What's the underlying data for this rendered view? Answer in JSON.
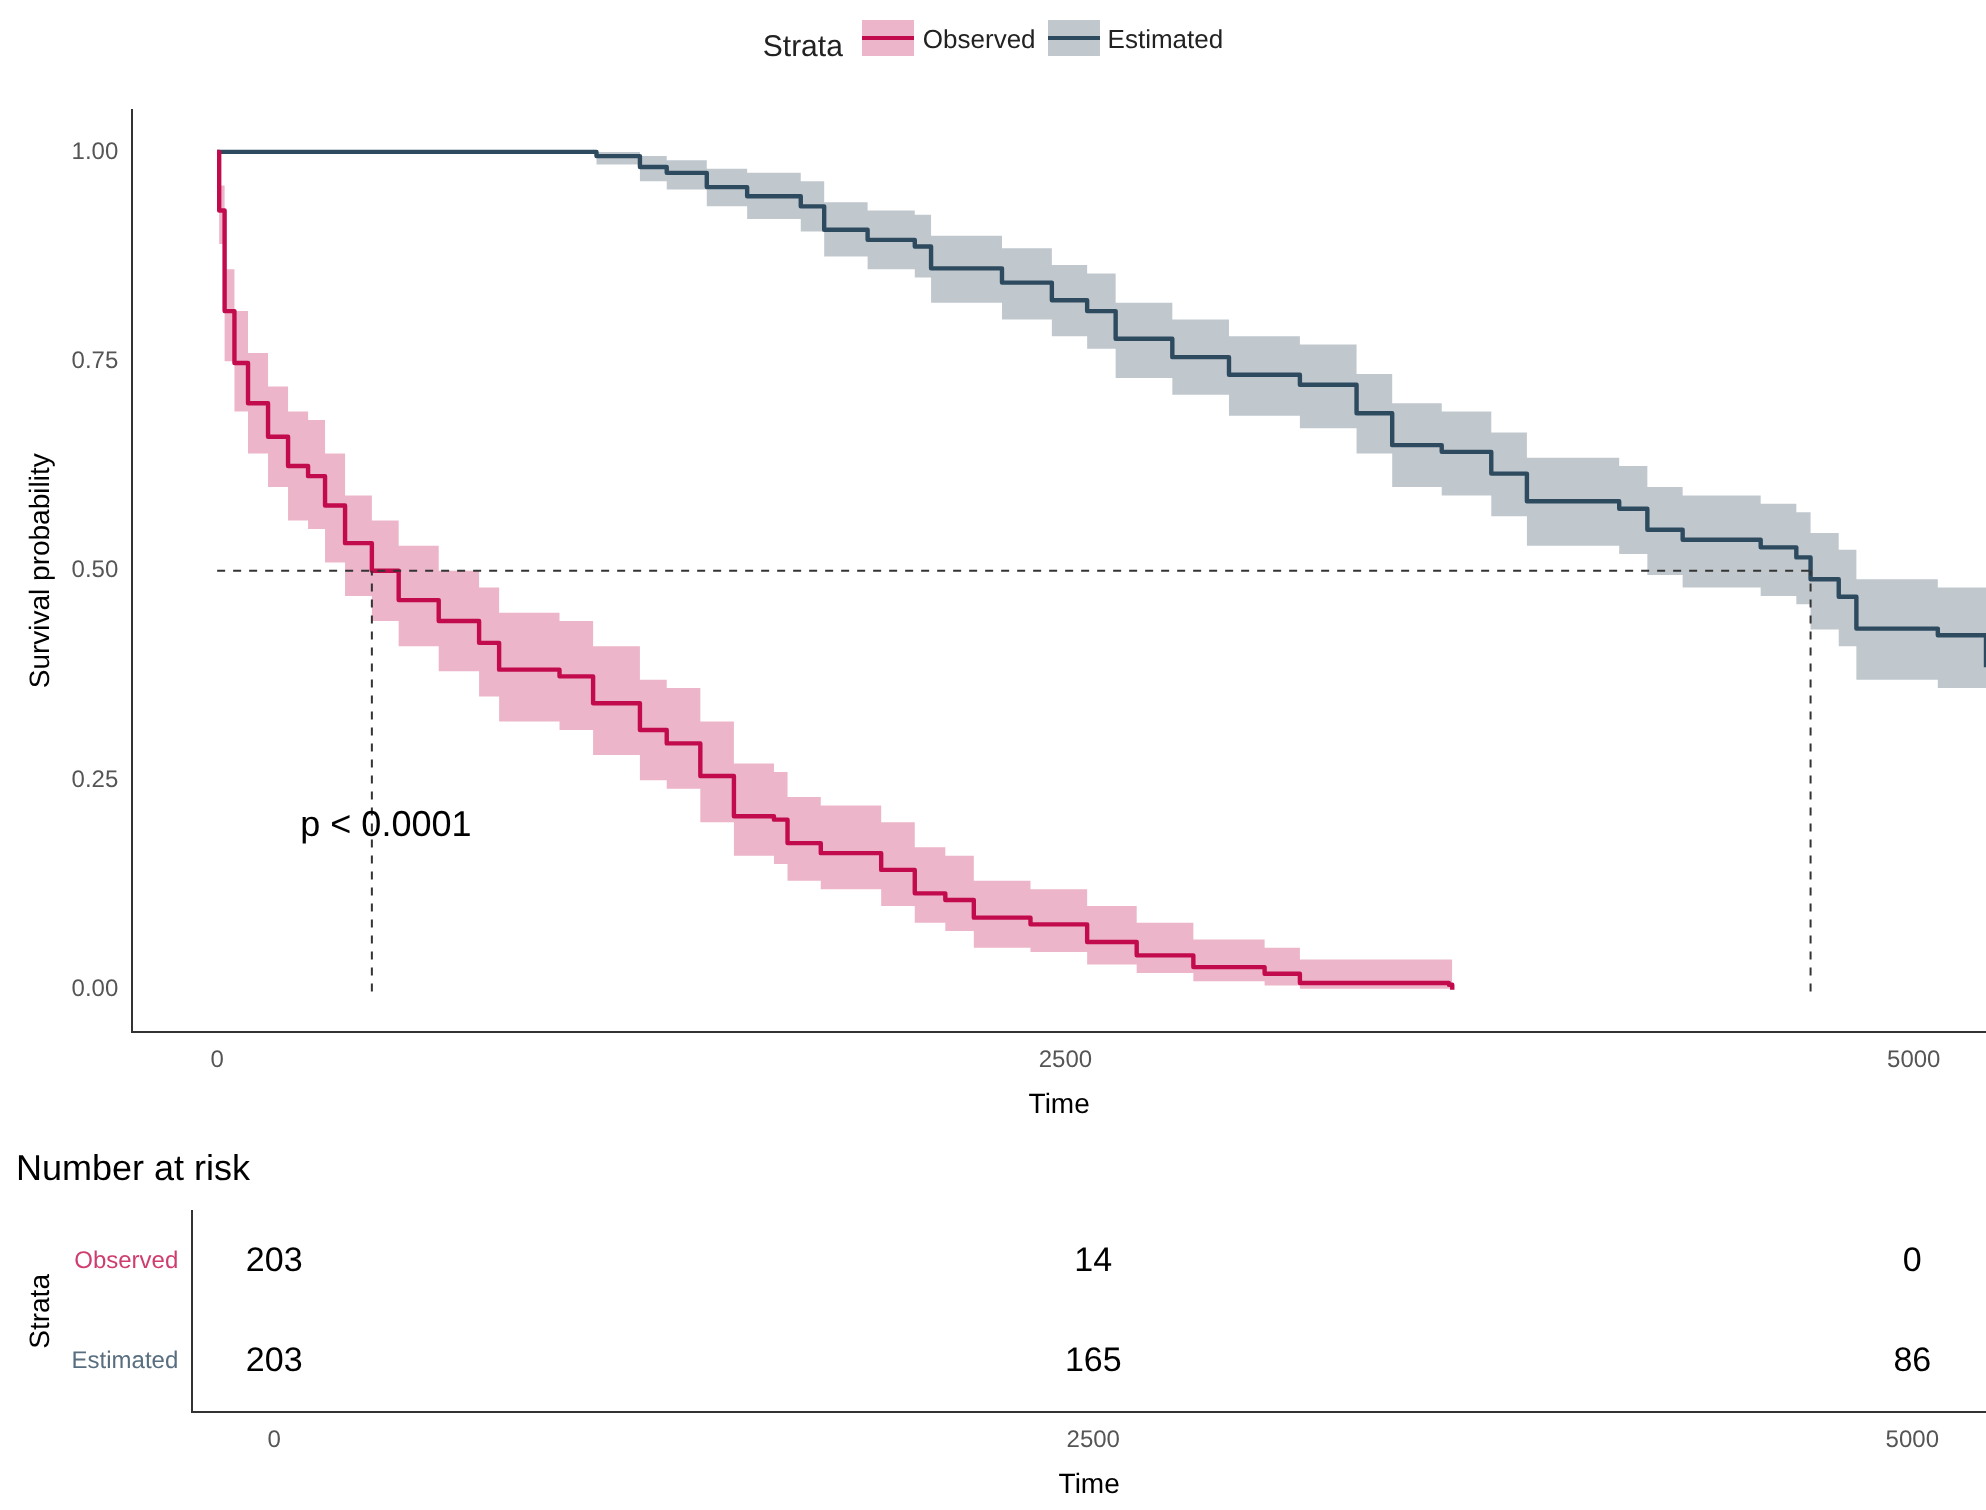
{
  "chart_data": [
    {
      "type": "step",
      "xlabel": "Time",
      "ylabel": "Survival probability",
      "legend_title": "Strata",
      "legend": "top",
      "grid": false,
      "xlim": [
        -250,
        5213
      ],
      "xticks": [
        0,
        2500,
        5000
      ],
      "ylim": [
        -0.05,
        1.05
      ],
      "yticks": [
        {
          "value": 0,
          "label": "0.00"
        },
        {
          "value": 0.25,
          "label": "0.25"
        },
        {
          "value": 0.5,
          "label": "0.50"
        },
        {
          "value": 0.75,
          "label": "0.75"
        },
        {
          "value": 1,
          "label": "1.00"
        }
      ],
      "ref_lines": [
        {
          "axis": "y",
          "value": 0.5,
          "line_style": "dashed"
        },
        {
          "axis": "x",
          "value": 456,
          "line_style": "dashed"
        },
        {
          "axis": "x",
          "value": 4696,
          "line_style": "dashed"
        }
      ],
      "annotations": [
        "p < 0.0001"
      ],
      "series": [
        {
          "name": "Observed",
          "color": "#c20b4c",
          "x": [
            0,
            6,
            22,
            51,
            91,
            150,
            209,
            268,
            318,
            377,
            456,
            535,
            653,
            772,
            831,
            1009,
            1108,
            1246,
            1325,
            1424,
            1523,
            1641,
            1681,
            1779,
            1957,
            2056,
            2146,
            2230,
            2397,
            2564,
            2710,
            2877,
            3087,
            3191,
            3630,
            3640
          ],
          "values": [
            1,
            0.93,
            0.81,
            0.748,
            0.7,
            0.66,
            0.625,
            0.613,
            0.578,
            0.533,
            0.5,
            0.465,
            0.44,
            0.414,
            0.382,
            0.374,
            0.342,
            0.31,
            0.294,
            0.255,
            0.207,
            0.203,
            0.175,
            0.163,
            0.143,
            0.115,
            0.107,
            0.086,
            0.078,
            0.057,
            0.041,
            0.027,
            0.019,
            0.008,
            0.006,
            0
          ],
          "upper": [
            1,
            0.96,
            0.86,
            0.81,
            0.76,
            0.72,
            0.69,
            0.68,
            0.64,
            0.59,
            0.56,
            0.53,
            0.5,
            0.48,
            0.45,
            0.44,
            0.41,
            0.37,
            0.36,
            0.32,
            0.27,
            0.26,
            0.23,
            0.22,
            0.2,
            0.17,
            0.16,
            0.13,
            0.12,
            0.1,
            0.08,
            0.06,
            0.05,
            0.036,
            0.036,
            0.036
          ],
          "lower": [
            1,
            0.89,
            0.75,
            0.69,
            0.64,
            0.6,
            0.56,
            0.55,
            0.51,
            0.47,
            0.44,
            0.41,
            0.38,
            0.35,
            0.32,
            0.31,
            0.28,
            0.25,
            0.24,
            0.2,
            0.16,
            0.15,
            0.13,
            0.12,
            0.1,
            0.08,
            0.07,
            0.05,
            0.045,
            0.03,
            0.02,
            0.01,
            0.005,
            0.001,
            0.001,
            0.001
          ]
        },
        {
          "name": "Estimated",
          "color": "#2e4a5e",
          "x": [
            0,
            871,
            1118,
            1246,
            1325,
            1443,
            1562,
            1720,
            1789,
            1917,
            2056,
            2104,
            2313,
            2460,
            2564,
            2648,
            2815,
            2982,
            3191,
            3358,
            3463,
            3609,
            3755,
            3860,
            4132,
            4215,
            4319,
            4549,
            4654,
            4696,
            4779,
            4831,
            5071,
            5213
          ],
          "values": [
            1,
            1,
            0.995,
            0.982,
            0.975,
            0.958,
            0.947,
            0.935,
            0.907,
            0.895,
            0.887,
            0.861,
            0.844,
            0.823,
            0.81,
            0.777,
            0.755,
            0.734,
            0.722,
            0.688,
            0.65,
            0.642,
            0.616,
            0.583,
            0.574,
            0.549,
            0.537,
            0.528,
            0.516,
            0.49,
            0.469,
            0.431,
            0.423,
            0.385
          ],
          "upper": [
            1,
            1,
            1,
            0.995,
            0.99,
            0.98,
            0.975,
            0.965,
            0.94,
            0.93,
            0.925,
            0.9,
            0.885,
            0.865,
            0.855,
            0.82,
            0.8,
            0.78,
            0.77,
            0.735,
            0.7,
            0.69,
            0.665,
            0.635,
            0.625,
            0.6,
            0.59,
            0.58,
            0.57,
            0.545,
            0.525,
            0.49,
            0.48,
            0.445
          ],
          "lower": [
            1,
            1,
            0.985,
            0.965,
            0.955,
            0.935,
            0.92,
            0.905,
            0.875,
            0.86,
            0.85,
            0.82,
            0.8,
            0.78,
            0.765,
            0.73,
            0.71,
            0.685,
            0.67,
            0.64,
            0.6,
            0.59,
            0.565,
            0.53,
            0.52,
            0.495,
            0.48,
            0.47,
            0.46,
            0.43,
            0.41,
            0.37,
            0.36,
            0.325
          ]
        }
      ]
    },
    {
      "type": "heatmap",
      "title": "Number at risk",
      "xlabel": "Time",
      "ylabel": "Strata",
      "categories": [
        "0",
        "2500",
        "5000"
      ],
      "y_categories": [
        "Observed",
        "Estimated"
      ],
      "cells": [
        [
          203,
          14,
          0
        ],
        [
          203,
          165,
          86
        ]
      ],
      "data_labels": true
    }
  ]
}
